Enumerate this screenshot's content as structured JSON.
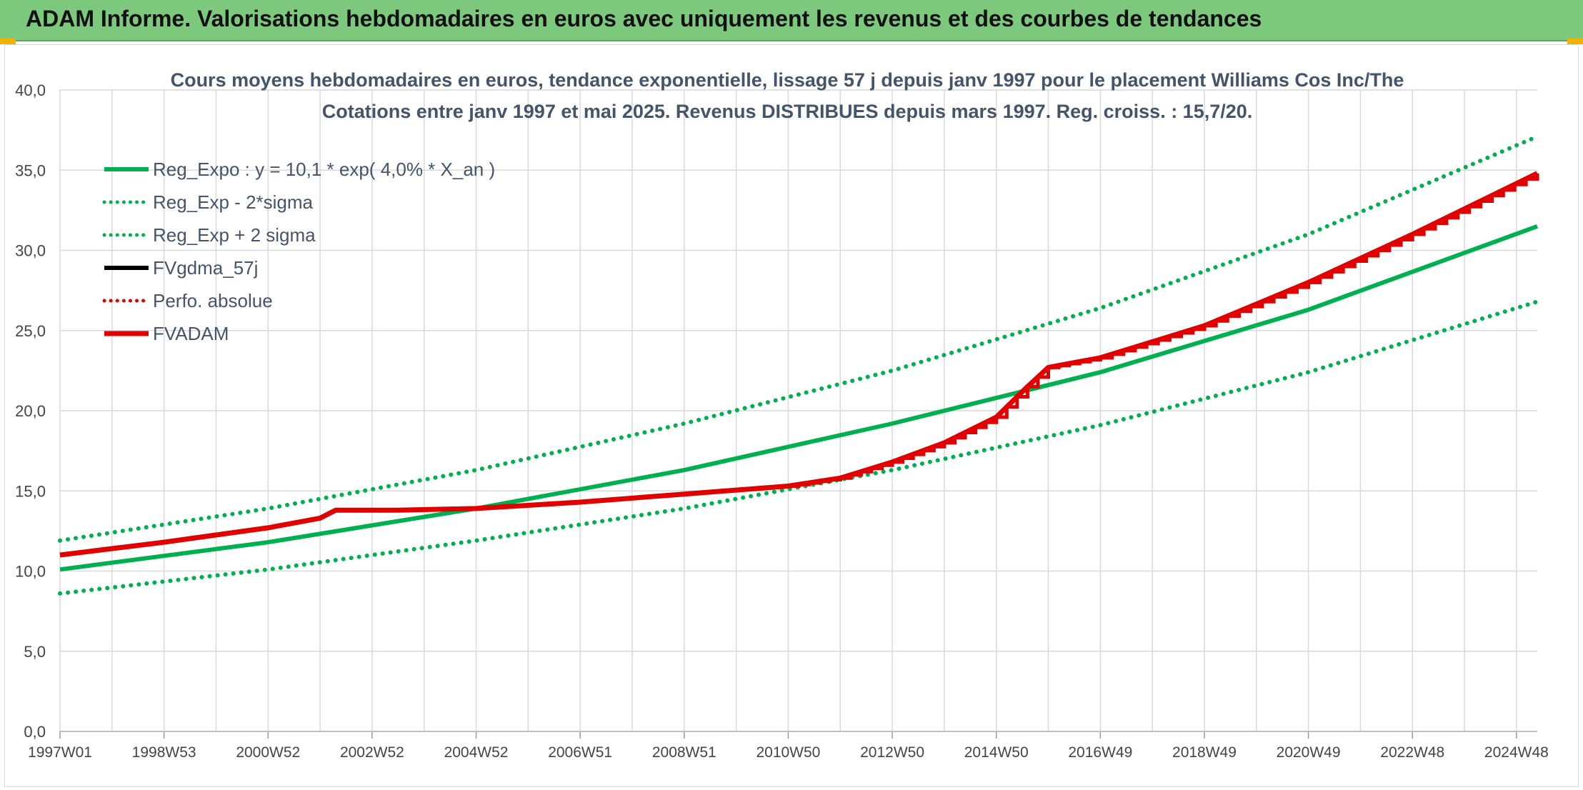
{
  "header": {
    "title": "ADAM Informe. Valorisations hebdomadaires en euros avec uniquement les revenus et des courbes de tendances"
  },
  "chart_data": {
    "type": "line",
    "title_line1": "Cours moyens hebdomadaires en euros, tendance exponentielle, lissage 57 j depuis janv 1997 pour le placement Williams Cos Inc/The",
    "title_line2": "Cotations entre janv 1997 et mai 2025. Revenus DISTRIBUES depuis mars 1997. Reg. croiss. : 15,7/20.",
    "x_start_year": 1997.0,
    "x_end_year": 2025.4,
    "x_ticks": [
      "1997W01",
      "1998W53",
      "2000W52",
      "2002W52",
      "2004W52",
      "2006W51",
      "2008W51",
      "2010W50",
      "2012W50",
      "2014W50",
      "2016W49",
      "2018W49",
      "2020W49",
      "2022W48",
      "2024W48"
    ],
    "x_tick_years": [
      1997.0,
      1999.0,
      2001.0,
      2003.0,
      2005.0,
      2007.0,
      2009.0,
      2011.0,
      2013.0,
      2015.0,
      2017.0,
      2019.0,
      2021.0,
      2023.0,
      2025.0
    ],
    "ylim": [
      0,
      40
    ],
    "y_ticks": [
      "0,0",
      "5,0",
      "10,0",
      "15,0",
      "20,0",
      "25,0",
      "30,0",
      "35,0",
      "40,0"
    ],
    "y_tick_values": [
      0,
      5,
      10,
      15,
      20,
      25,
      30,
      35,
      40
    ],
    "grid": true,
    "legend_position": "top-left",
    "colors": {
      "reg_expo": "#00b050",
      "fvadam": "#e00000",
      "fvgdma": "#000000",
      "grid": "#d9d9d9"
    },
    "series": [
      {
        "name": "Reg_Expo : y = 10,1 * exp( 4,0% *  X_an )",
        "style": "solid",
        "color": "#00b050",
        "x": [
          1997.0,
          2001.0,
          2005.0,
          2009.0,
          2013.0,
          2017.0,
          2021.0,
          2025.4
        ],
        "values": [
          10.1,
          11.8,
          13.9,
          16.3,
          19.2,
          22.4,
          26.3,
          31.5
        ]
      },
      {
        "name": "Reg_Exp - 2*sigma",
        "style": "dotted",
        "color": "#00b050",
        "x": [
          1997.0,
          2001.0,
          2005.0,
          2009.0,
          2013.0,
          2017.0,
          2021.0,
          2025.4
        ],
        "values": [
          8.6,
          10.1,
          11.9,
          13.9,
          16.3,
          19.1,
          22.4,
          26.8
        ]
      },
      {
        "name": "Reg_Exp + 2 sigma",
        "style": "dotted",
        "color": "#00b050",
        "x": [
          1997.0,
          2001.0,
          2005.0,
          2009.0,
          2013.0,
          2017.0,
          2021.0,
          2025.4
        ],
        "values": [
          11.9,
          13.9,
          16.3,
          19.2,
          22.5,
          26.4,
          31.0,
          37.1
        ]
      },
      {
        "name": "FVgdma_57j",
        "style": "solid",
        "color": "#000000",
        "x": [],
        "values": []
      },
      {
        "name": "Perfo. absolue",
        "style": "dotted",
        "color": "#e00000",
        "x": [],
        "values": []
      },
      {
        "name": "FVADAM",
        "style": "solid-thick",
        "color": "#e00000",
        "x": [
          1997.0,
          1999.0,
          2001.0,
          2002.0,
          2002.3,
          2003.5,
          2005.0,
          2007.0,
          2009.0,
          2011.0,
          2012.0,
          2013.0,
          2014.0,
          2015.0,
          2015.6,
          2016.0,
          2017.0,
          2019.0,
          2021.0,
          2023.0,
          2025.4
        ],
        "values": [
          11.0,
          11.8,
          12.7,
          13.3,
          13.8,
          13.8,
          13.9,
          14.3,
          14.8,
          15.3,
          15.8,
          16.8,
          18.0,
          19.6,
          21.5,
          22.7,
          23.3,
          25.3,
          28.0,
          31.0,
          34.8
        ]
      }
    ]
  }
}
